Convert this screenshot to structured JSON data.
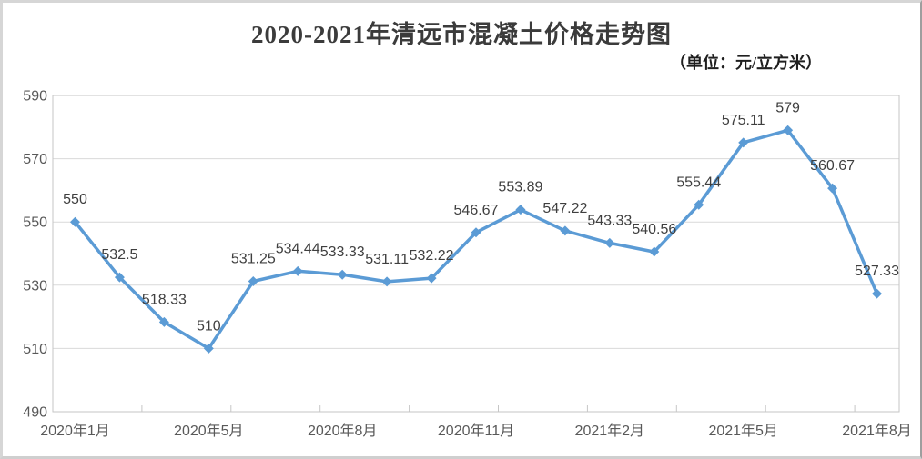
{
  "chart": {
    "title": "2020-2021年清远市混凝土价格走势图",
    "subtitle": "（单位：元/立方米）"
  },
  "chart_data": {
    "type": "line",
    "title": "2020-2021年清远市混凝土价格走势图",
    "subtitle": "（单位：元/立方米）",
    "unit": "元/立方米",
    "values": [
      550,
      532.5,
      518.33,
      510,
      531.25,
      534.44,
      533.33,
      531.11,
      532.22,
      546.67,
      553.89,
      547.22,
      543.33,
      540.56,
      555.44,
      575.11,
      579,
      560.67,
      527.33
    ],
    "point_labels": [
      "550",
      "532.5",
      "518.33",
      "510",
      "531.25",
      "534.44",
      "533.33",
      "531.11",
      "532.22",
      "546.67",
      "553.89",
      "547.22",
      "543.33",
      "540.56",
      "555.44",
      "575.11",
      "579",
      "560.67",
      "527.33"
    ],
    "x_tick_labels": [
      "2020年1月",
      "2020年5月",
      "2020年8月",
      "2020年11月",
      "2021年2月",
      "2021年5月",
      "2021年8月"
    ],
    "x_tick_indices": [
      0,
      3,
      6,
      9,
      12,
      15,
      18
    ],
    "y_ticks": [
      490,
      510,
      530,
      550,
      570,
      590
    ],
    "ylim": [
      490,
      590
    ],
    "grid": true,
    "legend": "none",
    "marker": "diamond",
    "style": {
      "line_color": "#5B9BD5",
      "marker_color": "#5B9BD5",
      "grid_color": "#D9D9D9",
      "axis_color": "#C6C6C6",
      "axis_text_color": "#595959",
      "data_label_color": "#3F3F3F"
    }
  }
}
